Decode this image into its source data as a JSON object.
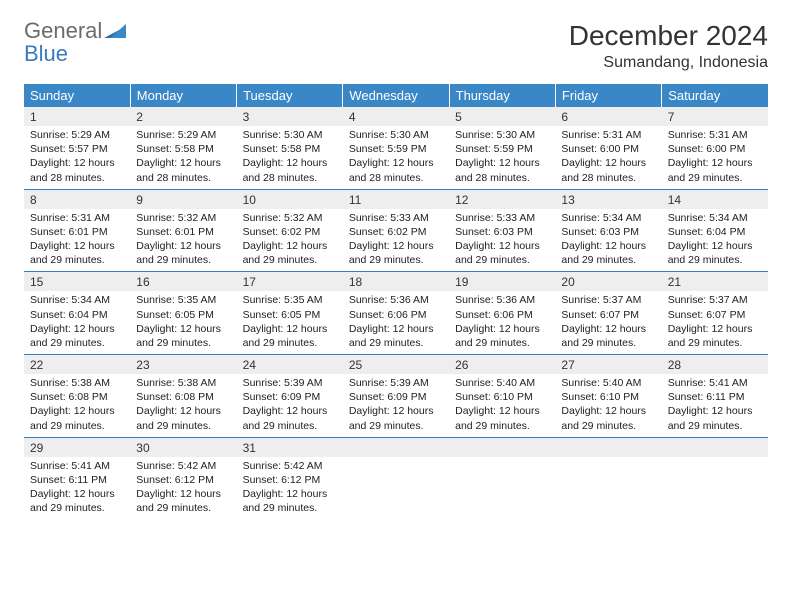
{
  "logo": {
    "general": "General",
    "blue": "Blue"
  },
  "title": "December 2024",
  "location": "Sumandang, Indonesia",
  "colors": {
    "header_bg": "#3a87c8",
    "header_text": "#ffffff",
    "daynum_bg": "#eeeeee",
    "row_border": "#3a7bbf",
    "logo_gray": "#6b6b6b",
    "logo_blue": "#3a7bbf"
  },
  "weekdays": [
    "Sunday",
    "Monday",
    "Tuesday",
    "Wednesday",
    "Thursday",
    "Friday",
    "Saturday"
  ],
  "weeks": [
    [
      {
        "d": 1,
        "sr": "5:29 AM",
        "ss": "5:57 PM",
        "dl": "12 hours and 28 minutes."
      },
      {
        "d": 2,
        "sr": "5:29 AM",
        "ss": "5:58 PM",
        "dl": "12 hours and 28 minutes."
      },
      {
        "d": 3,
        "sr": "5:30 AM",
        "ss": "5:58 PM",
        "dl": "12 hours and 28 minutes."
      },
      {
        "d": 4,
        "sr": "5:30 AM",
        "ss": "5:59 PM",
        "dl": "12 hours and 28 minutes."
      },
      {
        "d": 5,
        "sr": "5:30 AM",
        "ss": "5:59 PM",
        "dl": "12 hours and 28 minutes."
      },
      {
        "d": 6,
        "sr": "5:31 AM",
        "ss": "6:00 PM",
        "dl": "12 hours and 28 minutes."
      },
      {
        "d": 7,
        "sr": "5:31 AM",
        "ss": "6:00 PM",
        "dl": "12 hours and 29 minutes."
      }
    ],
    [
      {
        "d": 8,
        "sr": "5:31 AM",
        "ss": "6:01 PM",
        "dl": "12 hours and 29 minutes."
      },
      {
        "d": 9,
        "sr": "5:32 AM",
        "ss": "6:01 PM",
        "dl": "12 hours and 29 minutes."
      },
      {
        "d": 10,
        "sr": "5:32 AM",
        "ss": "6:02 PM",
        "dl": "12 hours and 29 minutes."
      },
      {
        "d": 11,
        "sr": "5:33 AM",
        "ss": "6:02 PM",
        "dl": "12 hours and 29 minutes."
      },
      {
        "d": 12,
        "sr": "5:33 AM",
        "ss": "6:03 PM",
        "dl": "12 hours and 29 minutes."
      },
      {
        "d": 13,
        "sr": "5:34 AM",
        "ss": "6:03 PM",
        "dl": "12 hours and 29 minutes."
      },
      {
        "d": 14,
        "sr": "5:34 AM",
        "ss": "6:04 PM",
        "dl": "12 hours and 29 minutes."
      }
    ],
    [
      {
        "d": 15,
        "sr": "5:34 AM",
        "ss": "6:04 PM",
        "dl": "12 hours and 29 minutes."
      },
      {
        "d": 16,
        "sr": "5:35 AM",
        "ss": "6:05 PM",
        "dl": "12 hours and 29 minutes."
      },
      {
        "d": 17,
        "sr": "5:35 AM",
        "ss": "6:05 PM",
        "dl": "12 hours and 29 minutes."
      },
      {
        "d": 18,
        "sr": "5:36 AM",
        "ss": "6:06 PM",
        "dl": "12 hours and 29 minutes."
      },
      {
        "d": 19,
        "sr": "5:36 AM",
        "ss": "6:06 PM",
        "dl": "12 hours and 29 minutes."
      },
      {
        "d": 20,
        "sr": "5:37 AM",
        "ss": "6:07 PM",
        "dl": "12 hours and 29 minutes."
      },
      {
        "d": 21,
        "sr": "5:37 AM",
        "ss": "6:07 PM",
        "dl": "12 hours and 29 minutes."
      }
    ],
    [
      {
        "d": 22,
        "sr": "5:38 AM",
        "ss": "6:08 PM",
        "dl": "12 hours and 29 minutes."
      },
      {
        "d": 23,
        "sr": "5:38 AM",
        "ss": "6:08 PM",
        "dl": "12 hours and 29 minutes."
      },
      {
        "d": 24,
        "sr": "5:39 AM",
        "ss": "6:09 PM",
        "dl": "12 hours and 29 minutes."
      },
      {
        "d": 25,
        "sr": "5:39 AM",
        "ss": "6:09 PM",
        "dl": "12 hours and 29 minutes."
      },
      {
        "d": 26,
        "sr": "5:40 AM",
        "ss": "6:10 PM",
        "dl": "12 hours and 29 minutes."
      },
      {
        "d": 27,
        "sr": "5:40 AM",
        "ss": "6:10 PM",
        "dl": "12 hours and 29 minutes."
      },
      {
        "d": 28,
        "sr": "5:41 AM",
        "ss": "6:11 PM",
        "dl": "12 hours and 29 minutes."
      }
    ],
    [
      {
        "d": 29,
        "sr": "5:41 AM",
        "ss": "6:11 PM",
        "dl": "12 hours and 29 minutes."
      },
      {
        "d": 30,
        "sr": "5:42 AM",
        "ss": "6:12 PM",
        "dl": "12 hours and 29 minutes."
      },
      {
        "d": 31,
        "sr": "5:42 AM",
        "ss": "6:12 PM",
        "dl": "12 hours and 29 minutes."
      },
      null,
      null,
      null,
      null
    ]
  ],
  "labels": {
    "sunrise": "Sunrise:",
    "sunset": "Sunset:",
    "daylight": "Daylight:"
  }
}
